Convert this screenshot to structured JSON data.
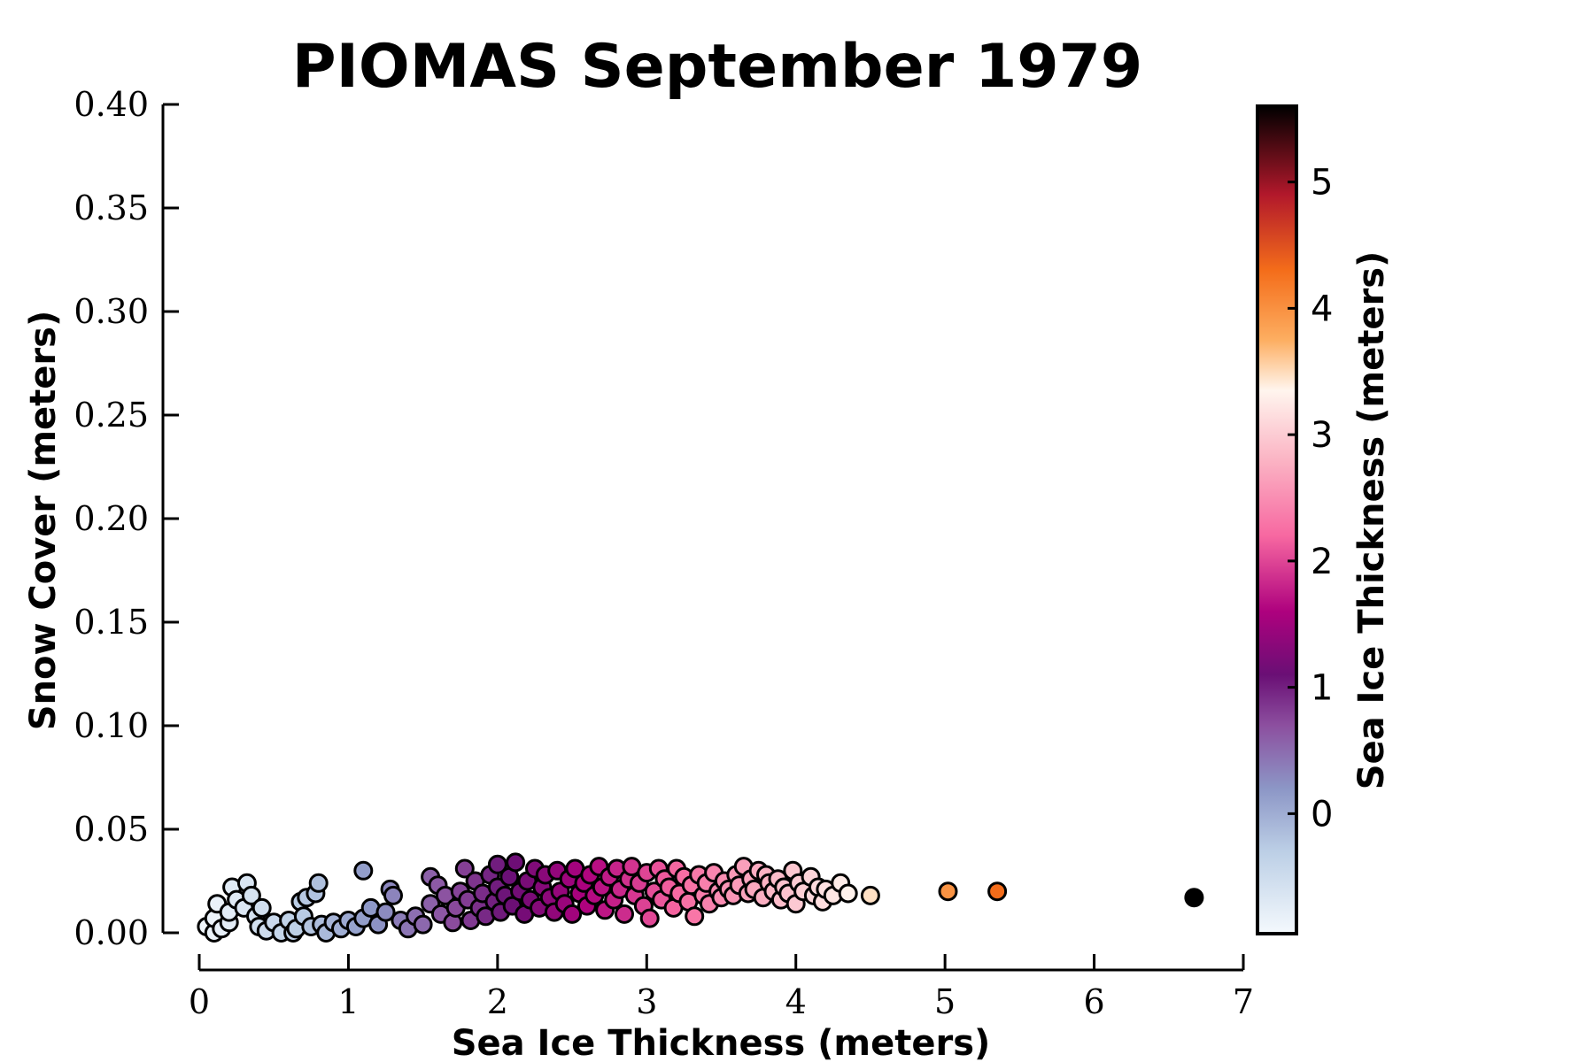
{
  "chart_data": {
    "type": "scatter",
    "title": "PIOMAS September 1979",
    "xlabel": "Sea Ice Thickness (meters)",
    "ylabel": "Snow Cover (meters)",
    "xlim": [
      0,
      7
    ],
    "ylim": [
      0,
      0.4
    ],
    "x_ticks": [
      "0",
      "1",
      "2",
      "3",
      "4",
      "5",
      "6",
      "7"
    ],
    "x_tick_values": [
      0,
      1,
      2,
      3,
      4,
      5,
      6,
      7
    ],
    "y_ticks": [
      "0.00",
      "0.05",
      "0.10",
      "0.15",
      "0.20",
      "0.25",
      "0.30",
      "0.35",
      "0.40"
    ],
    "y_tick_values": [
      0,
      0.05,
      0.1,
      0.15,
      0.2,
      0.25,
      0.3,
      0.35,
      0.4
    ],
    "grid": false,
    "colorbar": {
      "label": "Sea Ice Thickness (meters)",
      "range": [
        -0.95,
        5.6
      ],
      "ticks": [
        "0",
        "1",
        "2",
        "3",
        "4",
        "5"
      ],
      "tick_values": [
        0,
        1,
        2,
        3,
        4,
        5
      ],
      "colormap_stops": [
        {
          "v": -0.95,
          "color": "#f4f9fd"
        },
        {
          "v": -0.3,
          "color": "#bccfe6"
        },
        {
          "v": 0.2,
          "color": "#8c96c6"
        },
        {
          "v": 0.7,
          "color": "#8c4f9f"
        },
        {
          "v": 1.1,
          "color": "#6a0f75"
        },
        {
          "v": 1.6,
          "color": "#ae017e"
        },
        {
          "v": 2.2,
          "color": "#f768a1"
        },
        {
          "v": 2.8,
          "color": "#fbb4c4"
        },
        {
          "v": 3.35,
          "color": "#fff5ee"
        },
        {
          "v": 3.75,
          "color": "#fdae61"
        },
        {
          "v": 4.3,
          "color": "#f46d1a"
        },
        {
          "v": 4.9,
          "color": "#b2182b"
        },
        {
          "v": 5.6,
          "color": "#000000"
        }
      ]
    },
    "points": [
      {
        "x": 0.05,
        "y": 0.003
      },
      {
        "x": 0.1,
        "y": 0.0
      },
      {
        "x": 0.1,
        "y": 0.007
      },
      {
        "x": 0.15,
        "y": 0.002
      },
      {
        "x": 0.12,
        "y": 0.014
      },
      {
        "x": 0.2,
        "y": 0.005
      },
      {
        "x": 0.2,
        "y": 0.01
      },
      {
        "x": 0.22,
        "y": 0.022
      },
      {
        "x": 0.25,
        "y": 0.016
      },
      {
        "x": 0.3,
        "y": 0.012
      },
      {
        "x": 0.32,
        "y": 0.024
      },
      {
        "x": 0.35,
        "y": 0.018
      },
      {
        "x": 0.38,
        "y": 0.008
      },
      {
        "x": 0.4,
        "y": 0.003
      },
      {
        "x": 0.42,
        "y": 0.012
      },
      {
        "x": 0.45,
        "y": 0.001
      },
      {
        "x": 0.5,
        "y": 0.005
      },
      {
        "x": 0.55,
        "y": 0.0
      },
      {
        "x": 0.6,
        "y": 0.006
      },
      {
        "x": 0.63,
        "y": 0.0
      },
      {
        "x": 0.65,
        "y": 0.002
      },
      {
        "x": 0.68,
        "y": 0.015
      },
      {
        "x": 0.7,
        "y": 0.008
      },
      {
        "x": 0.72,
        "y": 0.017
      },
      {
        "x": 0.75,
        "y": 0.003
      },
      {
        "x": 0.78,
        "y": 0.019
      },
      {
        "x": 0.8,
        "y": 0.024
      },
      {
        "x": 0.82,
        "y": 0.004
      },
      {
        "x": 0.85,
        "y": 0.0
      },
      {
        "x": 0.9,
        "y": 0.005
      },
      {
        "x": 0.95,
        "y": 0.002
      },
      {
        "x": 1.0,
        "y": 0.006
      },
      {
        "x": 1.05,
        "y": 0.003
      },
      {
        "x": 1.1,
        "y": 0.03
      },
      {
        "x": 1.1,
        "y": 0.007
      },
      {
        "x": 1.15,
        "y": 0.012
      },
      {
        "x": 1.2,
        "y": 0.004
      },
      {
        "x": 1.25,
        "y": 0.01
      },
      {
        "x": 1.28,
        "y": 0.021
      },
      {
        "x": 1.3,
        "y": 0.018
      },
      {
        "x": 1.35,
        "y": 0.006
      },
      {
        "x": 1.4,
        "y": 0.002
      },
      {
        "x": 1.45,
        "y": 0.008
      },
      {
        "x": 1.5,
        "y": 0.004
      },
      {
        "x": 1.55,
        "y": 0.027
      },
      {
        "x": 1.55,
        "y": 0.014
      },
      {
        "x": 1.6,
        "y": 0.023
      },
      {
        "x": 1.62,
        "y": 0.009
      },
      {
        "x": 1.65,
        "y": 0.018
      },
      {
        "x": 1.7,
        "y": 0.005
      },
      {
        "x": 1.72,
        "y": 0.012
      },
      {
        "x": 1.75,
        "y": 0.02
      },
      {
        "x": 1.78,
        "y": 0.031
      },
      {
        "x": 1.8,
        "y": 0.016
      },
      {
        "x": 1.82,
        "y": 0.006
      },
      {
        "x": 1.85,
        "y": 0.025
      },
      {
        "x": 1.88,
        "y": 0.012
      },
      {
        "x": 1.9,
        "y": 0.019
      },
      {
        "x": 1.92,
        "y": 0.008
      },
      {
        "x": 1.95,
        "y": 0.028
      },
      {
        "x": 1.98,
        "y": 0.015
      },
      {
        "x": 2.0,
        "y": 0.033
      },
      {
        "x": 2.0,
        "y": 0.022
      },
      {
        "x": 2.02,
        "y": 0.01
      },
      {
        "x": 2.05,
        "y": 0.018
      },
      {
        "x": 2.08,
        "y": 0.027
      },
      {
        "x": 2.1,
        "y": 0.013
      },
      {
        "x": 2.12,
        "y": 0.034
      },
      {
        "x": 2.15,
        "y": 0.02
      },
      {
        "x": 2.18,
        "y": 0.009
      },
      {
        "x": 2.2,
        "y": 0.025
      },
      {
        "x": 2.22,
        "y": 0.016
      },
      {
        "x": 2.25,
        "y": 0.031
      },
      {
        "x": 2.28,
        "y": 0.012
      },
      {
        "x": 2.3,
        "y": 0.022
      },
      {
        "x": 2.32,
        "y": 0.028
      },
      {
        "x": 2.35,
        "y": 0.017
      },
      {
        "x": 2.38,
        "y": 0.01
      },
      {
        "x": 2.4,
        "y": 0.03
      },
      {
        "x": 2.42,
        "y": 0.02
      },
      {
        "x": 2.45,
        "y": 0.014
      },
      {
        "x": 2.48,
        "y": 0.026
      },
      {
        "x": 2.5,
        "y": 0.009
      },
      {
        "x": 2.52,
        "y": 0.031
      },
      {
        "x": 2.55,
        "y": 0.019
      },
      {
        "x": 2.58,
        "y": 0.024
      },
      {
        "x": 2.6,
        "y": 0.013
      },
      {
        "x": 2.62,
        "y": 0.028
      },
      {
        "x": 2.65,
        "y": 0.018
      },
      {
        "x": 2.68,
        "y": 0.032
      },
      {
        "x": 2.7,
        "y": 0.022
      },
      {
        "x": 2.72,
        "y": 0.011
      },
      {
        "x": 2.75,
        "y": 0.027
      },
      {
        "x": 2.78,
        "y": 0.016
      },
      {
        "x": 2.8,
        "y": 0.031
      },
      {
        "x": 2.82,
        "y": 0.021
      },
      {
        "x": 2.85,
        "y": 0.009
      },
      {
        "x": 2.88,
        "y": 0.026
      },
      {
        "x": 2.9,
        "y": 0.032
      },
      {
        "x": 2.92,
        "y": 0.018
      },
      {
        "x": 2.95,
        "y": 0.024
      },
      {
        "x": 2.98,
        "y": 0.013
      },
      {
        "x": 3.0,
        "y": 0.029
      },
      {
        "x": 3.02,
        "y": 0.007
      },
      {
        "x": 3.05,
        "y": 0.02
      },
      {
        "x": 3.08,
        "y": 0.031
      },
      {
        "x": 3.1,
        "y": 0.016
      },
      {
        "x": 3.12,
        "y": 0.026
      },
      {
        "x": 3.15,
        "y": 0.022
      },
      {
        "x": 3.18,
        "y": 0.012
      },
      {
        "x": 3.2,
        "y": 0.031
      },
      {
        "x": 3.22,
        "y": 0.019
      },
      {
        "x": 3.25,
        "y": 0.027
      },
      {
        "x": 3.28,
        "y": 0.015
      },
      {
        "x": 3.3,
        "y": 0.023
      },
      {
        "x": 3.32,
        "y": 0.008
      },
      {
        "x": 3.35,
        "y": 0.028
      },
      {
        "x": 3.38,
        "y": 0.018
      },
      {
        "x": 3.4,
        "y": 0.024
      },
      {
        "x": 3.42,
        "y": 0.014
      },
      {
        "x": 3.45,
        "y": 0.029
      },
      {
        "x": 3.48,
        "y": 0.02
      },
      {
        "x": 3.5,
        "y": 0.017
      },
      {
        "x": 3.52,
        "y": 0.025
      },
      {
        "x": 3.55,
        "y": 0.021
      },
      {
        "x": 3.58,
        "y": 0.018
      },
      {
        "x": 3.6,
        "y": 0.028
      },
      {
        "x": 3.62,
        "y": 0.023
      },
      {
        "x": 3.65,
        "y": 0.032
      },
      {
        "x": 3.68,
        "y": 0.019
      },
      {
        "x": 3.7,
        "y": 0.026
      },
      {
        "x": 3.72,
        "y": 0.021
      },
      {
        "x": 3.75,
        "y": 0.03
      },
      {
        "x": 3.78,
        "y": 0.017
      },
      {
        "x": 3.8,
        "y": 0.028
      },
      {
        "x": 3.82,
        "y": 0.024
      },
      {
        "x": 3.85,
        "y": 0.02
      },
      {
        "x": 3.88,
        "y": 0.026
      },
      {
        "x": 3.9,
        "y": 0.016
      },
      {
        "x": 3.92,
        "y": 0.022
      },
      {
        "x": 3.95,
        "y": 0.019
      },
      {
        "x": 3.98,
        "y": 0.03
      },
      {
        "x": 4.0,
        "y": 0.014
      },
      {
        "x": 4.02,
        "y": 0.024
      },
      {
        "x": 4.05,
        "y": 0.02
      },
      {
        "x": 4.1,
        "y": 0.027
      },
      {
        "x": 4.12,
        "y": 0.018
      },
      {
        "x": 4.15,
        "y": 0.022
      },
      {
        "x": 4.18,
        "y": 0.015
      },
      {
        "x": 4.2,
        "y": 0.021
      },
      {
        "x": 4.25,
        "y": 0.018
      },
      {
        "x": 4.3,
        "y": 0.024
      },
      {
        "x": 4.35,
        "y": 0.019
      },
      {
        "x": 4.5,
        "y": 0.018
      },
      {
        "x": 5.02,
        "y": 0.02
      },
      {
        "x": 5.35,
        "y": 0.02
      },
      {
        "x": 6.67,
        "y": 0.017
      }
    ]
  }
}
